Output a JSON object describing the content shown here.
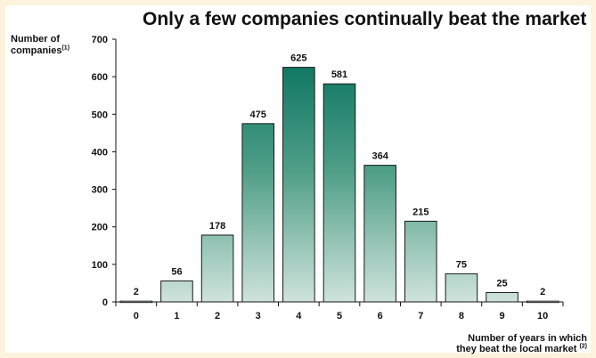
{
  "chart_data": {
    "type": "bar",
    "title": "Only a few companies continually beat the market",
    "ylabel": "Number of",
    "ylabel_line2": "companies",
    "ylabel_note": "(1)",
    "xlabel": "Number of years in which",
    "xlabel_line2": "they beat the local market",
    "xlabel_note": "(2)",
    "categories": [
      "0",
      "1",
      "2",
      "3",
      "4",
      "5",
      "6",
      "7",
      "8",
      "9",
      "10"
    ],
    "values": [
      2,
      56,
      178,
      475,
      625,
      581,
      364,
      215,
      75,
      25,
      2
    ],
    "ylim": [
      0,
      700
    ],
    "yticks": [
      0,
      100,
      200,
      300,
      400,
      500,
      600,
      700
    ],
    "grid": false,
    "colors": {
      "bar_top": "#006e5a",
      "bar_mid": "#4f9e88",
      "bar_base": "#cfe3dc",
      "bar_edge": "#1a1a1a",
      "frame": "#fdf3dc"
    }
  }
}
